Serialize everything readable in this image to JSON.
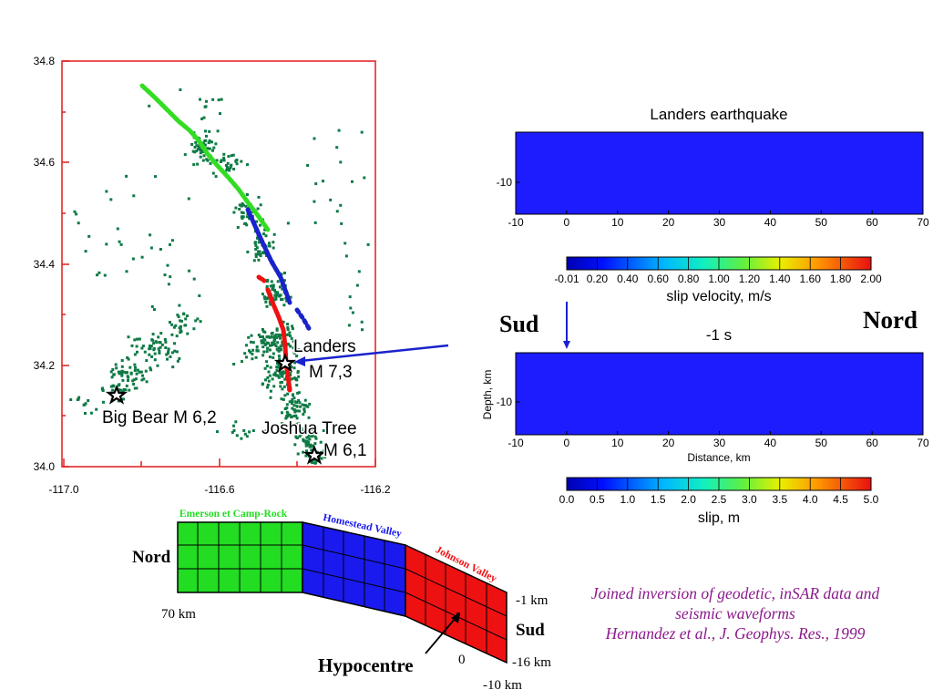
{
  "map": {
    "y_ticks": [
      "34.8",
      "34.6",
      "34.4",
      "34.2",
      "34.0"
    ],
    "x_ticks": [
      "-117.0",
      "-116.6",
      "-116.2"
    ],
    "labels": {
      "landers_1": "Landers",
      "landers_2": "M 7,3",
      "bigbear": "Big Bear M 6,2",
      "joshua_1": "Joshua Tree",
      "joshua_2": "M 6,1"
    },
    "colors": {
      "frame": "#e11c1c",
      "aftershocks": "#0e7a45",
      "green": "#33dd22",
      "blue": "#1a22cc",
      "red": "#ee1111"
    }
  },
  "panel_top": {
    "title": "Landers earthquake",
    "y_tick": "-10",
    "x_ticks": [
      "-10",
      "0",
      "10",
      "20",
      "30",
      "40",
      "50",
      "60",
      "70"
    ],
    "fill_color": "#1c1cff"
  },
  "colorbar_velocity": {
    "ticks": [
      "-0.01",
      "0.20",
      "0.40",
      "0.60",
      "0.80",
      "1.00",
      "1.20",
      "1.40",
      "1.60",
      "1.80",
      "2.00"
    ],
    "label": "slip velocity, m/s"
  },
  "panel_bottom": {
    "time_label": "-1 s",
    "y_label": "Depth, km",
    "y_tick": "-10",
    "x_ticks": [
      "-10",
      "0",
      "10",
      "20",
      "30",
      "40",
      "50",
      "60",
      "70"
    ],
    "x_label": "Distance, km"
  },
  "colorbar_slip": {
    "ticks": [
      "0.0",
      "0.5",
      "1.0",
      "1.5",
      "2.0",
      "2.5",
      "3.0",
      "3.5",
      "4.0",
      "4.5",
      "5.0"
    ],
    "label": "slip, m"
  },
  "labels": {
    "sud_top": "Sud",
    "nord_top": "Nord",
    "nord_bottom": "Nord",
    "sud_bottom": "Sud"
  },
  "fault": {
    "segments": [
      {
        "name": "Emerson et Camp-Rock",
        "color": "#22dd22"
      },
      {
        "name": "Homestead Valley",
        "color": "#1a1aee"
      },
      {
        "name": "Johnson Valley",
        "color": "#ee1111"
      }
    ],
    "labels": {
      "km70": "70 km",
      "km_minus1": "-1 km",
      "km_minus16": "-16 km",
      "km_minus10": "-10 km",
      "zero": "0",
      "hypocentre": "Hypocentre"
    }
  },
  "credit": {
    "line1": "Joined inversion of geodetic, inSAR data and",
    "line2": "seismic waveforms",
    "line3": "Hernandez et al., J. Geophys. Res., 1999"
  }
}
